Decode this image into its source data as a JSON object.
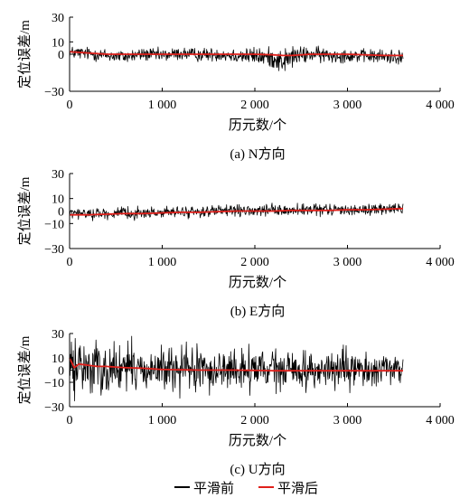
{
  "legend": {
    "items": [
      {
        "label": "平滑前",
        "color": "#000000"
      },
      {
        "label": "平滑后",
        "color": "#e0201b"
      }
    ]
  },
  "chart_data": [
    {
      "type": "line",
      "caption": "(a) N方向",
      "xlabel": "历元数/个",
      "ylabel": "定位误差/m",
      "xlim": [
        0,
        4000
      ],
      "ylim": [
        -30,
        30
      ],
      "xticks": [
        0,
        1000,
        2000,
        3000,
        4000
      ],
      "xtick_labels": [
        "0",
        "1 000",
        "2 000",
        "3 000",
        "4 000"
      ],
      "yticks": [
        -30,
        0,
        10,
        30
      ],
      "ytick_labels": [
        "−30",
        "0",
        "10",
        "30"
      ],
      "grid": false,
      "x": [
        0,
        200,
        400,
        600,
        800,
        1000,
        1200,
        1400,
        1600,
        1800,
        2000,
        2200,
        2300,
        2400,
        2500,
        2600,
        2800,
        3000,
        3200,
        3400,
        3600
      ],
      "series": [
        {
          "name": "平滑前",
          "color": "#000000",
          "kind": "noise",
          "values": [
            1.5,
            0.5,
            -1,
            -2,
            0,
            -1,
            0.5,
            -0.5,
            0,
            -1,
            -1.5,
            -3,
            -6,
            -2,
            -1,
            0,
            -1,
            -1,
            -1.5,
            -2,
            -2
          ],
          "amplitude": [
            6,
            6,
            6,
            6,
            6,
            6,
            6,
            6,
            6,
            7,
            8,
            9,
            12,
            10,
            8,
            7,
            7,
            6,
            6,
            7,
            7
          ]
        },
        {
          "name": "平滑后",
          "color": "#e0201b",
          "kind": "smooth",
          "values": [
            2,
            1,
            0,
            0,
            0,
            0,
            0,
            0,
            0,
            0,
            0,
            -0.5,
            -1,
            -1,
            -0.5,
            0,
            0,
            0,
            -0.5,
            -1,
            -1
          ]
        }
      ]
    },
    {
      "type": "line",
      "caption": "(b) E方向",
      "xlabel": "历元数/个",
      "ylabel": "定位误差/m",
      "xlim": [
        0,
        4000
      ],
      "ylim": [
        -30,
        30
      ],
      "xticks": [
        0,
        1000,
        2000,
        3000,
        4000
      ],
      "xtick_labels": [
        "0",
        "1 000",
        "2 000",
        "3 000",
        "4 000"
      ],
      "yticks": [
        -30,
        -10,
        0,
        10,
        30
      ],
      "ytick_labels": [
        "−30",
        "−10",
        "0",
        "10",
        "30"
      ],
      "grid": false,
      "x": [
        0,
        200,
        400,
        600,
        800,
        1000,
        1200,
        1400,
        1600,
        1800,
        2000,
        2200,
        2400,
        2600,
        2800,
        3000,
        3200,
        3400,
        3600
      ],
      "series": [
        {
          "name": "平滑前",
          "color": "#000000",
          "kind": "noise",
          "values": [
            -2,
            -2,
            -2,
            -2,
            -1.5,
            -1,
            -1,
            -0.5,
            0,
            0,
            0,
            0.5,
            0.5,
            0.5,
            1,
            1,
            1,
            1.5,
            2
          ],
          "amplitude": [
            5,
            5,
            5,
            5,
            5,
            5,
            5,
            5,
            5,
            5,
            5,
            5,
            5,
            6,
            5,
            5,
            5,
            5,
            6
          ]
        },
        {
          "name": "平滑后",
          "color": "#e0201b",
          "kind": "smooth",
          "values": [
            -3,
            -3,
            -2.5,
            -2,
            -2,
            -1.5,
            -1,
            -1,
            -0.5,
            0,
            0,
            0,
            0.5,
            0.5,
            0.5,
            1,
            1,
            1.5,
            2
          ]
        }
      ]
    },
    {
      "type": "line",
      "caption": "(c) U方向",
      "xlabel": "历元数/个",
      "ylabel": "定位误差/m",
      "xlim": [
        0,
        4000
      ],
      "ylim": [
        -30,
        30
      ],
      "xticks": [
        0,
        1000,
        2000,
        3000,
        4000
      ],
      "xtick_labels": [
        "0",
        "1 000",
        "2 000",
        "3 000",
        "4 000"
      ],
      "yticks": [
        -30,
        -10,
        0,
        10,
        30
      ],
      "ytick_labels": [
        "−30",
        "−10",
        "0",
        "10",
        "30"
      ],
      "grid": false,
      "x": [
        0,
        50,
        100,
        200,
        300,
        400,
        600,
        800,
        1000,
        1400,
        1800,
        2200,
        2600,
        3000,
        3400,
        3600
      ],
      "series": [
        {
          "name": "平滑前",
          "color": "#000000",
          "kind": "noise",
          "values": [
            0,
            2,
            3,
            3,
            2,
            2,
            1,
            1,
            0,
            0,
            0,
            0,
            0,
            0,
            0,
            0
          ],
          "amplitude": [
            25,
            25,
            25,
            25,
            25,
            25,
            24,
            24,
            22,
            20,
            20,
            18,
            18,
            16,
            14,
            14
          ]
        },
        {
          "name": "平滑后",
          "color": "#e0201b",
          "kind": "smooth",
          "values": [
            10,
            2,
            5,
            4,
            3,
            3,
            2,
            1.5,
            0.5,
            0,
            0,
            -0.5,
            -0.5,
            -0.5,
            -0.5,
            -0.5
          ]
        }
      ]
    }
  ]
}
